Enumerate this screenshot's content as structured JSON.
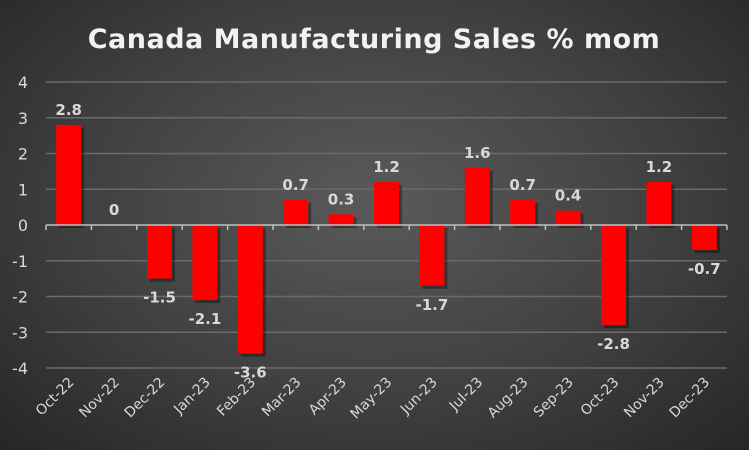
{
  "chart_data": {
    "type": "bar",
    "title": "Canada Manufacturing Sales % mom",
    "xlabel": "",
    "ylabel": "",
    "categories": [
      "Oct-22",
      "Nov-22",
      "Dec-22",
      "Jan-23",
      "Feb-23",
      "Mar-23",
      "Apr-23",
      "May-23",
      "Jun-23",
      "Jul-23",
      "Aug-23",
      "Sep-23",
      "Oct-23",
      "Nov-23",
      "Dec-23"
    ],
    "values": [
      2.8,
      0,
      -1.5,
      -2.1,
      -3.6,
      0.7,
      0.3,
      1.2,
      -1.7,
      1.6,
      0.7,
      0.4,
      -2.8,
      1.2,
      -0.7
    ],
    "data_labels": [
      "2.8",
      "0",
      "-1.5",
      "-2.1",
      "-3.6",
      "0.7",
      "0.3",
      "1.2",
      "-1.7",
      "1.6",
      "0.7",
      "0.4",
      "-2.8",
      "1.2",
      "-0.7"
    ],
    "ylim": [
      -4,
      4
    ],
    "yticks": [
      4,
      3,
      2,
      1,
      0,
      -1,
      -2,
      -3,
      -4
    ],
    "grid": true,
    "legend": "none",
    "bar_color": "#ff0000"
  }
}
